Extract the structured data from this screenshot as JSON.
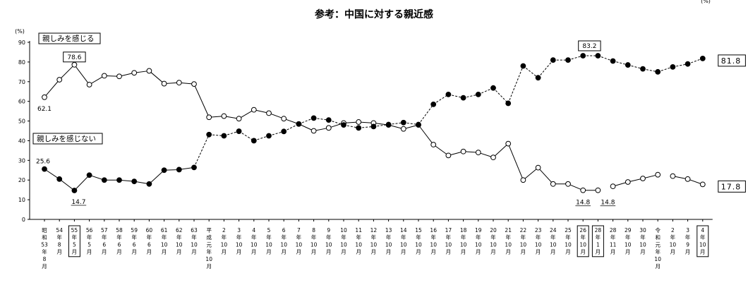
{
  "chart_data": {
    "type": "line",
    "title": "参考：中国に対する親近感",
    "top_right_fragment": "(%)",
    "ylabel": "(%)",
    "ylim": [
      0,
      90
    ],
    "yticks": [
      0,
      10,
      20,
      30,
      40,
      50,
      60,
      70,
      80,
      90
    ],
    "grid": false,
    "legend": "inline",
    "categories": [
      {
        "lines": [
          "昭",
          "和",
          "53",
          "年",
          "8",
          "月"
        ]
      },
      {
        "lines": [
          "54",
          "年",
          "8",
          "月"
        ]
      },
      {
        "lines": [
          "55",
          "年",
          "5",
          "月"
        ],
        "boxed": true
      },
      {
        "lines": [
          "56",
          "年",
          "5",
          "月"
        ]
      },
      {
        "lines": [
          "57",
          "年",
          "6",
          "月"
        ]
      },
      {
        "lines": [
          "58",
          "年",
          "6",
          "月"
        ]
      },
      {
        "lines": [
          "59",
          "年",
          "6",
          "月"
        ]
      },
      {
        "lines": [
          "60",
          "年",
          "6",
          "月"
        ]
      },
      {
        "lines": [
          "61",
          "年",
          "10",
          "月"
        ]
      },
      {
        "lines": [
          "62",
          "年",
          "10",
          "月"
        ]
      },
      {
        "lines": [
          "63",
          "年",
          "10",
          "月"
        ]
      },
      {
        "lines": [
          "平",
          "成",
          "元",
          "年",
          "10",
          "月"
        ]
      },
      {
        "lines": [
          "2",
          "年",
          "10",
          "月"
        ]
      },
      {
        "lines": [
          "3",
          "年",
          "10",
          "月"
        ]
      },
      {
        "lines": [
          "4",
          "年",
          "10",
          "月"
        ]
      },
      {
        "lines": [
          "5",
          "年",
          "10",
          "月"
        ]
      },
      {
        "lines": [
          "6",
          "年",
          "10",
          "月"
        ]
      },
      {
        "lines": [
          "7",
          "年",
          "10",
          "月"
        ]
      },
      {
        "lines": [
          "8",
          "年",
          "10",
          "月"
        ]
      },
      {
        "lines": [
          "9",
          "年",
          "10",
          "月"
        ]
      },
      {
        "lines": [
          "10",
          "年",
          "10",
          "月"
        ]
      },
      {
        "lines": [
          "11",
          "年",
          "10",
          "月"
        ]
      },
      {
        "lines": [
          "12",
          "年",
          "10",
          "月"
        ]
      },
      {
        "lines": [
          "13",
          "年",
          "10",
          "月"
        ]
      },
      {
        "lines": [
          "14",
          "年",
          "10",
          "月"
        ]
      },
      {
        "lines": [
          "15",
          "年",
          "10",
          "月"
        ]
      },
      {
        "lines": [
          "16",
          "年",
          "10",
          "月"
        ]
      },
      {
        "lines": [
          "17",
          "年",
          "10",
          "月"
        ]
      },
      {
        "lines": [
          "18",
          "年",
          "10",
          "月"
        ]
      },
      {
        "lines": [
          "19",
          "年",
          "10",
          "月"
        ]
      },
      {
        "lines": [
          "20",
          "年",
          "10",
          "月"
        ]
      },
      {
        "lines": [
          "21",
          "年",
          "10",
          "月"
        ]
      },
      {
        "lines": [
          "22",
          "年",
          "10",
          "月"
        ]
      },
      {
        "lines": [
          "23",
          "年",
          "10",
          "月"
        ]
      },
      {
        "lines": [
          "24",
          "年",
          "10",
          "月"
        ]
      },
      {
        "lines": [
          "25",
          "年",
          "10",
          "月"
        ]
      },
      {
        "lines": [
          "26",
          "年",
          "10",
          "月"
        ],
        "boxed": true
      },
      {
        "lines": [
          "28",
          "年",
          "1",
          "月"
        ],
        "boxed": true
      },
      {
        "lines": [
          "28",
          "年",
          "11",
          "月"
        ]
      },
      {
        "lines": [
          "29",
          "年",
          "10",
          "月"
        ]
      },
      {
        "lines": [
          "30",
          "年",
          "10",
          "月"
        ]
      },
      {
        "lines": [
          "令",
          "和",
          "元",
          "年",
          "10",
          "月"
        ]
      },
      {
        "lines": [
          "2",
          "年",
          "10",
          "月"
        ]
      },
      {
        "lines": [
          "3",
          "年",
          "9",
          "月"
        ]
      },
      {
        "lines": [
          "4",
          "年",
          "10",
          "月"
        ],
        "boxed": true
      }
    ],
    "series": [
      {
        "name": "親しみを感じる",
        "marker": "open-circle",
        "color": "#000000",
        "values": [
          62.1,
          71,
          78.6,
          68.5,
          73,
          72.7,
          74.5,
          75.5,
          69,
          69.5,
          68.8,
          51.9,
          52.5,
          51.2,
          55.7,
          54,
          51.2,
          48.5,
          45,
          46.5,
          49,
          49.5,
          49,
          48,
          46,
          48,
          38,
          32.5,
          34.5,
          34,
          31.5,
          38.5,
          20,
          26.3,
          18,
          18,
          14.8,
          14.8,
          16.8,
          19,
          20.8,
          22.7,
          22,
          20.5,
          17.8
        ],
        "line_breaks_after_index": [
          37,
          41
        ],
        "dashed_segments_after_index": []
      },
      {
        "name": "親しみを感じない",
        "marker": "filled-circle",
        "color": "#000000",
        "values": [
          25.6,
          20.5,
          14.7,
          22.5,
          20,
          20,
          19.3,
          18,
          25,
          25.3,
          26.4,
          43.1,
          42.5,
          44.8,
          40,
          42.5,
          44.7,
          48.5,
          51.5,
          50.5,
          48,
          46.5,
          47.2,
          48.2,
          49.2,
          48.2,
          58.5,
          63.5,
          61.8,
          63.5,
          66.8,
          59,
          78,
          72,
          81,
          81,
          83.2,
          83.2,
          80.5,
          78.5,
          76.5,
          75,
          77.5,
          79,
          81.8
        ],
        "line_breaks_after_index": [],
        "dashed_segments_after_index": [
          10,
          11,
          12,
          13,
          14,
          15,
          16,
          17,
          18,
          19,
          20,
          21,
          22,
          23,
          24,
          25,
          26,
          27,
          28,
          29,
          30,
          31,
          32,
          33,
          34,
          35,
          36,
          37,
          38,
          39,
          40,
          41,
          42,
          43,
          44
        ]
      }
    ],
    "annotations": [
      {
        "text": "62.1",
        "series": 0,
        "index": 0,
        "boxed": false
      },
      {
        "text": "78.6",
        "series": 0,
        "index": 2,
        "boxed": true
      },
      {
        "text": "14.8",
        "series": 0,
        "index": 36,
        "boxed": false,
        "underline": true
      },
      {
        "text": "14.8",
        "series": 0,
        "index": 37,
        "boxed": false,
        "underline": true
      },
      {
        "text": "17.8",
        "series": 0,
        "index": 44,
        "boxed": true,
        "large": true
      },
      {
        "text": "25.6",
        "series": 1,
        "index": 0,
        "boxed": false
      },
      {
        "text": "14.7",
        "series": 1,
        "index": 2,
        "boxed": false,
        "underline": true
      },
      {
        "text": "83.2",
        "series": 1,
        "index": 37,
        "boxed": true
      },
      {
        "text": "81.8",
        "series": 1,
        "index": 44,
        "boxed": true,
        "large": true
      }
    ]
  }
}
